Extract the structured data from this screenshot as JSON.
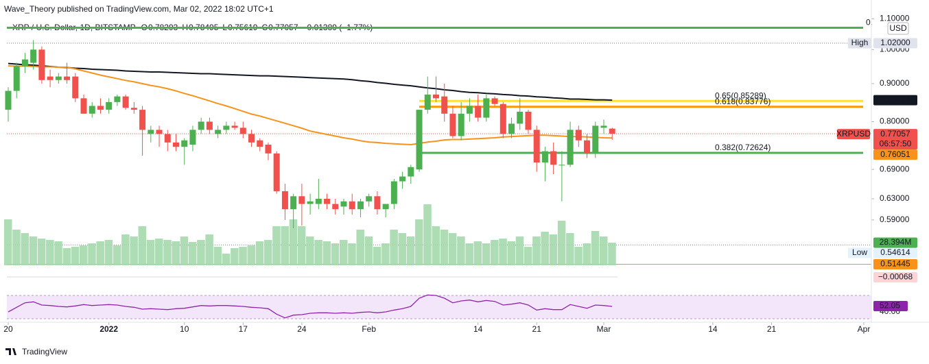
{
  "header": {
    "published": "Wave_Theory published on TradingView.com, Mar 02, 2022 18:02 UTC+1",
    "symbol": "XRP / U.S. Dollar, 1D, BITSTAMP",
    "ohlc": [
      {
        "key": "O",
        "value": "0.78293"
      },
      {
        "key": "H",
        "value": "0.78495"
      },
      {
        "key": "L",
        "value": "0.75619"
      },
      {
        "key": "C",
        "value": "0.77057"
      }
    ],
    "change": "−0.01389 (−1.77%)"
  },
  "chart_data": {
    "type": "candlestick",
    "log_scale": true,
    "ylim": [
      0.5095,
      1.166
    ],
    "yticks": [
      {
        "value": 1.1,
        "label": "1.10000"
      },
      {
        "value": 1.0,
        "label": "1.00000"
      },
      {
        "value": 0.9,
        "label": "0.90000"
      },
      {
        "value": 0.8,
        "label": "0.80000"
      },
      {
        "value": 0.69,
        "label": "0.69000"
      },
      {
        "value": 0.63,
        "label": "0.63000"
      },
      {
        "value": 0.59,
        "label": "0.59000"
      }
    ],
    "xlim": [
      -0.98,
      102.9
    ],
    "xticks": [
      {
        "value": 0,
        "label": "20"
      },
      {
        "value": 12,
        "label": "2022"
      },
      {
        "value": 21,
        "label": "10"
      },
      {
        "value": 28,
        "label": "17"
      },
      {
        "value": 35,
        "label": "24"
      },
      {
        "value": 43,
        "label": "Feb"
      },
      {
        "value": 56,
        "label": "14"
      },
      {
        "value": 63,
        "label": "21"
      },
      {
        "value": 71,
        "label": "Mar"
      },
      {
        "value": 84,
        "label": "14"
      },
      {
        "value": 91,
        "label": "21"
      },
      {
        "value": 102,
        "label": "Apr"
      }
    ],
    "up_color": "#4caf50",
    "down_color": "#f0514c",
    "open": [
      0.83,
      0.88,
      0.95,
      0.96,
      1.0,
      0.92,
      0.91,
      0.92,
      0.92,
      0.86,
      0.82,
      0.84,
      0.83,
      0.85,
      0.865,
      0.835,
      0.83,
      0.77,
      0.78,
      0.77,
      0.75,
      0.74,
      0.745,
      0.78,
      0.8,
      0.77,
      0.78,
      0.79,
      0.785,
      0.77,
      0.755,
      0.745,
      0.725,
      0.645,
      0.61,
      0.635,
      0.62,
      0.62,
      0.63,
      0.62,
      0.615,
      0.625,
      0.61,
      0.625,
      0.635,
      0.61,
      0.62,
      0.665,
      0.675,
      0.69,
      0.83,
      0.87,
      0.865,
      0.82,
      0.765,
      0.82,
      0.84,
      0.81,
      0.86,
      0.845,
      0.77,
      0.795,
      0.825,
      0.78,
      0.705,
      0.73,
      0.7,
      0.7,
      0.78,
      0.755,
      0.725,
      0.785,
      0.78293
    ],
    "high": [
      0.89,
      0.96,
      0.99,
      1.03,
      1.01,
      0.94,
      0.93,
      0.96,
      0.93,
      0.87,
      0.85,
      0.86,
      0.86,
      0.87,
      0.87,
      0.85,
      0.84,
      0.79,
      0.79,
      0.78,
      0.77,
      0.76,
      0.79,
      0.81,
      0.81,
      0.79,
      0.8,
      0.8,
      0.8,
      0.78,
      0.76,
      0.75,
      0.73,
      0.66,
      0.64,
      0.66,
      0.64,
      0.67,
      0.64,
      0.63,
      0.63,
      0.64,
      0.63,
      0.64,
      0.645,
      0.62,
      0.67,
      0.685,
      0.7,
      0.83,
      0.92,
      0.92,
      0.9,
      0.84,
      0.85,
      0.86,
      0.87,
      0.87,
      0.865,
      0.85,
      0.81,
      0.86,
      0.83,
      0.79,
      0.74,
      0.75,
      0.73,
      0.8,
      0.79,
      0.77,
      0.8,
      0.805,
      0.78495
    ],
    "low": [
      0.8,
      0.86,
      0.93,
      0.94,
      0.9,
      0.89,
      0.9,
      0.9,
      0.85,
      0.82,
      0.81,
      0.82,
      0.82,
      0.84,
      0.83,
      0.82,
      0.72,
      0.75,
      0.74,
      0.73,
      0.73,
      0.7,
      0.73,
      0.77,
      0.77,
      0.76,
      0.77,
      0.78,
      0.76,
      0.74,
      0.73,
      0.71,
      0.64,
      0.59,
      0.575,
      0.58,
      0.6,
      0.61,
      0.61,
      0.6,
      0.6,
      0.6,
      0.595,
      0.615,
      0.6,
      0.595,
      0.61,
      0.65,
      0.66,
      0.685,
      0.82,
      0.85,
      0.8,
      0.76,
      0.755,
      0.8,
      0.8,
      0.8,
      0.84,
      0.76,
      0.76,
      0.78,
      0.77,
      0.685,
      0.665,
      0.68,
      0.625,
      0.695,
      0.74,
      0.715,
      0.715,
      0.77,
      0.75619
    ],
    "close": [
      0.88,
      0.95,
      0.97,
      1.0,
      0.91,
      0.91,
      0.92,
      0.91,
      0.86,
      0.82,
      0.84,
      0.83,
      0.85,
      0.865,
      0.835,
      0.83,
      0.78,
      0.78,
      0.77,
      0.75,
      0.74,
      0.755,
      0.78,
      0.8,
      0.78,
      0.78,
      0.79,
      0.785,
      0.77,
      0.75,
      0.74,
      0.725,
      0.645,
      0.61,
      0.635,
      0.62,
      0.625,
      0.63,
      0.62,
      0.61,
      0.625,
      0.61,
      0.625,
      0.635,
      0.61,
      0.62,
      0.665,
      0.675,
      0.695,
      0.83,
      0.87,
      0.86,
      0.82,
      0.765,
      0.82,
      0.84,
      0.81,
      0.86,
      0.845,
      0.77,
      0.795,
      0.825,
      0.78,
      0.705,
      0.73,
      0.7,
      0.7,
      0.78,
      0.755,
      0.725,
      0.79,
      0.79,
      0.77057
    ],
    "series": [
      {
        "color": "#131722",
        "tag": "0.85524",
        "values": [
          0.958,
          0.956,
          0.954,
          0.953,
          0.951,
          0.949,
          0.947,
          0.946,
          0.944,
          0.943,
          0.941,
          0.94,
          0.939,
          0.938,
          0.936,
          0.935,
          0.934,
          0.933,
          0.933,
          0.932,
          0.931,
          0.93,
          0.929,
          0.928,
          0.928,
          0.927,
          0.926,
          0.925,
          0.924,
          0.923,
          0.922,
          0.922,
          0.921,
          0.92,
          0.919,
          0.918,
          0.917,
          0.916,
          0.915,
          0.914,
          0.913,
          0.911,
          0.908,
          0.906,
          0.903,
          0.901,
          0.898,
          0.896,
          0.894,
          0.891,
          0.888,
          0.886,
          0.883,
          0.881,
          0.878,
          0.876,
          0.875,
          0.873,
          0.872,
          0.87,
          0.869,
          0.867,
          0.866,
          0.864,
          0.863,
          0.861,
          0.86,
          0.858,
          0.858,
          0.857,
          0.856,
          0.856,
          0.855
        ]
      },
      {
        "color": "#f7931a",
        "tag": "0.76051",
        "values": [
          0.951,
          0.95,
          0.95,
          0.949,
          0.948,
          0.948,
          0.947,
          0.947,
          0.942,
          0.936,
          0.93,
          0.924,
          0.919,
          0.914,
          0.909,
          0.905,
          0.9,
          0.895,
          0.891,
          0.886,
          0.88,
          0.873,
          0.867,
          0.86,
          0.853,
          0.846,
          0.84,
          0.833,
          0.826,
          0.819,
          0.814,
          0.808,
          0.802,
          0.796,
          0.79,
          0.784,
          0.777,
          0.773,
          0.769,
          0.765,
          0.761,
          0.758,
          0.754,
          0.751,
          0.75,
          0.748,
          0.747,
          0.746,
          0.745,
          0.748,
          0.751,
          0.753,
          0.756,
          0.757,
          0.757,
          0.758,
          0.759,
          0.76,
          0.761,
          0.763,
          0.764,
          0.765,
          0.766,
          0.767,
          0.767,
          0.766,
          0.765,
          0.764,
          0.764,
          0.763,
          0.762,
          0.761,
          0.7605
        ]
      }
    ],
    "volume": {
      "color": "#a5d8ad",
      "tag": "28.394M",
      "values": [
        57.6,
        44.7,
        40.4,
        36.1,
        33.5,
        31.8,
        30.1,
        21.5,
        23.2,
        24.9,
        27.5,
        30.1,
        31.8,
        24.9,
        38.7,
        36.1,
        49.0,
        31.8,
        33.5,
        31.8,
        30.1,
        36.1,
        29.2,
        31.8,
        38.7,
        23.2,
        14.6,
        21.5,
        23.2,
        24.9,
        30.1,
        31.8,
        49.0,
        49.0,
        57.6,
        49.0,
        36.1,
        31.8,
        30.1,
        27.5,
        31.8,
        27.5,
        44.7,
        36.1,
        23.2,
        27.5,
        44.7,
        40.4,
        36.1,
        57.6,
        76.5,
        49.0,
        44.7,
        40.4,
        36.1,
        27.5,
        30.1,
        27.5,
        31.8,
        33.5,
        30.1,
        36.1,
        23.2,
        36.1,
        42.1,
        38.7,
        55.9,
        40.4,
        23.2,
        27.5,
        43.0,
        36.1,
        28.394
      ]
    },
    "current": {
      "value": 0.77057,
      "symbol": "XRPUSD",
      "label": "0.77057",
      "countdown": "06:57:50",
      "color": "#f0514c"
    },
    "hlines": [
      {
        "name": "High",
        "value": 1.02,
        "label": "1.02000"
      },
      {
        "name": "Low",
        "value": 0.54614,
        "label": "0.54614"
      }
    ],
    "support": {
      "value": 0.51445,
      "label": "0.51445",
      "color": "#f7931a"
    },
    "fib_levels": [
      {
        "label": "0.",
        "value": 1.07,
        "color": "#4caf50"
      },
      {
        "label": "0.65(0.85289)",
        "value": 0.85289,
        "color": "#ffe033"
      },
      {
        "label": "0.618(0.83776)",
        "value": 0.83776,
        "color": "#ff9800"
      },
      {
        "label": "0.382(0.72624)",
        "value": 0.72624,
        "color": "#4caf50"
      }
    ],
    "macd": {
      "tag": "−0.00068"
    },
    "rsi": {
      "color": "#8e24aa",
      "tag": "52.05",
      "tick": {
        "value": 40,
        "label": "40.00"
      },
      "values": [
        40,
        50,
        60,
        62,
        55,
        54,
        52,
        51,
        53,
        56,
        54,
        55,
        56,
        55,
        52,
        50,
        46,
        47,
        46,
        45,
        47,
        48,
        51,
        54,
        53,
        54,
        54,
        53,
        52,
        50,
        49,
        47,
        35,
        27,
        33,
        34,
        37,
        38,
        38,
        37,
        38,
        37,
        39,
        40,
        38,
        40,
        44,
        47,
        52,
        70,
        77,
        76,
        70,
        60,
        64,
        66,
        62,
        65,
        63,
        55,
        57,
        60,
        55,
        44,
        47,
        45,
        45,
        56,
        52,
        48,
        55,
        54,
        52.05
      ]
    }
  },
  "footer": "TradingView"
}
